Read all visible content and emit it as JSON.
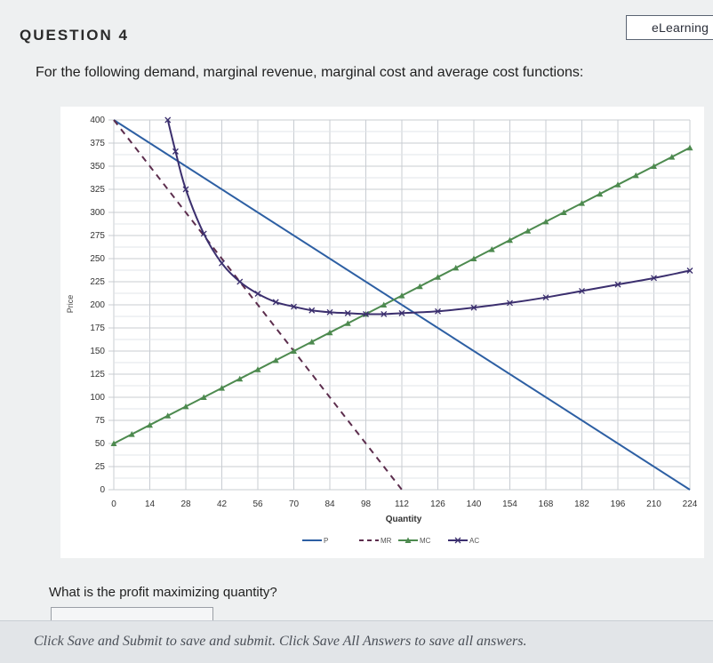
{
  "header": {
    "brand": "eLearning",
    "question_title": "QUESTION 4",
    "prompt": "For the following demand, marginal revenue, marginal cost and average cost functions:"
  },
  "chart_data": {
    "type": "line",
    "xlabel": "Quantity",
    "ylabel": "Price",
    "xlim": [
      0,
      224
    ],
    "ylim": [
      0,
      400
    ],
    "x_ticks": [
      0,
      14,
      28,
      42,
      56,
      70,
      84,
      98,
      112,
      126,
      140,
      154,
      168,
      182,
      196,
      210,
      224
    ],
    "y_ticks": [
      0,
      25,
      50,
      75,
      100,
      125,
      150,
      175,
      200,
      225,
      250,
      275,
      300,
      325,
      350,
      375,
      400
    ],
    "grid": true,
    "legend_position": "bottom",
    "series": [
      {
        "name": "P",
        "style": "solid",
        "color": "#2d5fa3",
        "x": [
          0,
          224
        ],
        "y": [
          400,
          0
        ]
      },
      {
        "name": "MR",
        "style": "dashed",
        "color": "#5c2d4d",
        "x": [
          0,
          112
        ],
        "y": [
          400,
          0
        ]
      },
      {
        "name": "MC",
        "style": "triangle-markers",
        "color": "#4d8a4f",
        "x": [
          0,
          14,
          28,
          42,
          56,
          70,
          84,
          98,
          112,
          126,
          140,
          154,
          168,
          182,
          196,
          210,
          224
        ],
        "y": [
          50,
          70,
          90,
          110,
          130,
          150,
          170,
          190,
          210,
          230,
          250,
          270,
          290,
          310,
          330,
          350,
          370
        ]
      },
      {
        "name": "AC",
        "style": "x-markers",
        "color": "#3b2f6e",
        "x": [
          21,
          24,
          28,
          35,
          42,
          49,
          56,
          63,
          70,
          77,
          84,
          91,
          98,
          105,
          112,
          126,
          140,
          154,
          168,
          182,
          196,
          210,
          224
        ],
        "y": [
          400,
          366,
          325,
          277,
          245,
          225,
          212,
          203,
          198,
          194,
          192,
          191,
          190,
          190,
          191,
          193,
          197,
          202,
          208,
          215,
          222,
          229,
          237
        ]
      }
    ]
  },
  "question": {
    "text": "What is the profit maximizing quantity?",
    "answer_value": ""
  },
  "footer": {
    "part1": "Click ",
    "link1": "Save and Submit",
    "part2": " to save and submit. Click ",
    "link2": "Save All Answers",
    "part3": " to save all answers."
  },
  "colors": {
    "page_bg": "#eef0f1",
    "chart_bg": "#ffffff",
    "grid": "#c8ccd2"
  }
}
